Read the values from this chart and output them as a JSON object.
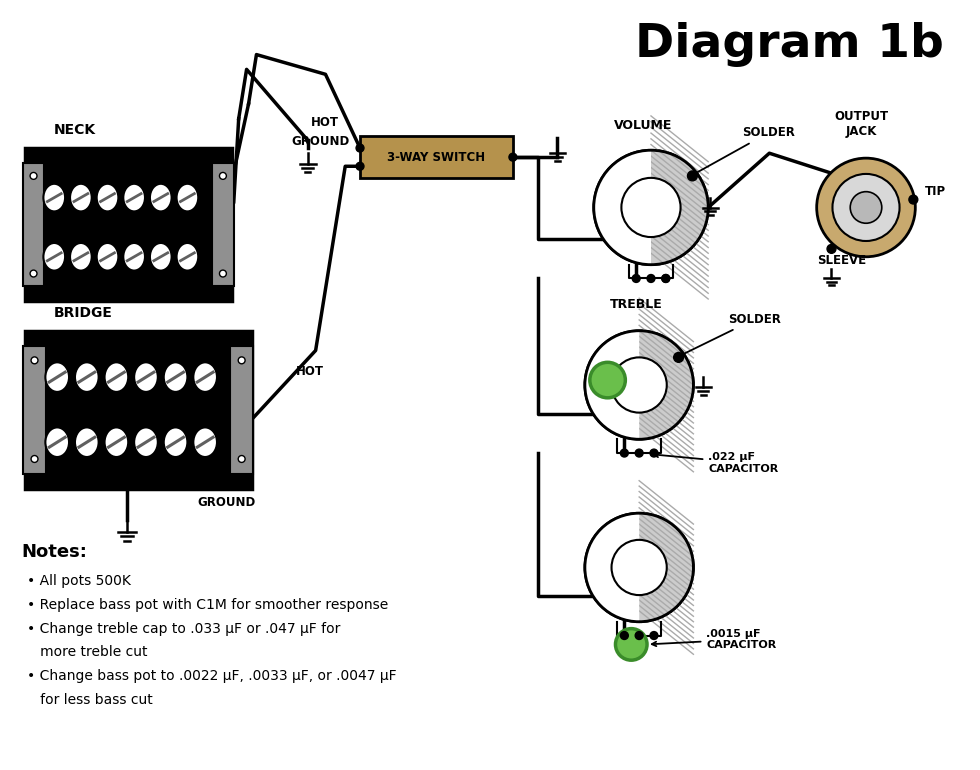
{
  "title": "Diagram 1b",
  "bg_color": "#ffffff",
  "title_fontsize": 34,
  "title_fontweight": "bold",
  "notes_title": "Notes:",
  "notes_lines": [
    "• All pots 500K",
    "• Replace bass pot with C1M for smoother response",
    "• Change treble cap to .033 μF or .047 μF for",
    "   more treble cut",
    "• Change bass pot to .0022 μF, .0033 μF, or .0047 μF",
    "   for less bass cut"
  ],
  "switch_box_color": "#b5924c",
  "switch_box_edge": "#000000",
  "switch_label": "3-WAY SWITCH",
  "neck_label": "NECK",
  "bridge_label": "BRIDGE",
  "volume_label": "VOLUME",
  "treble_label": "TREBLE",
  "solder_label1": "SOLDER",
  "solder_label2": "SOLDER",
  "sleeve_label": "SLEEVE",
  "output_jack_label": "OUTPUT\nJACK",
  "tip_label": "TIP",
  "hot_label1": "HOT",
  "ground_label1": "GROUND",
  "hot_label2": "HOT",
  "ground_label2": "GROUND",
  "cap1_label": ".022 μF\nCAPACITOR",
  "cap2_label": ".0015 μF\nCAPACITOR",
  "green_dot_color": "#6abf4b",
  "line_color": "#000000",
  "line_width": 2.5,
  "pot_outer_gray": "#c8c8c8",
  "pot_stripe_light": "#d0d0d0",
  "pot_stripe_dark": "#a0a0a0",
  "output_jack_tan": "#c8a96e",
  "output_jack_gray": "#d8d8d8",
  "output_jack_inner": "#b8b8b8"
}
